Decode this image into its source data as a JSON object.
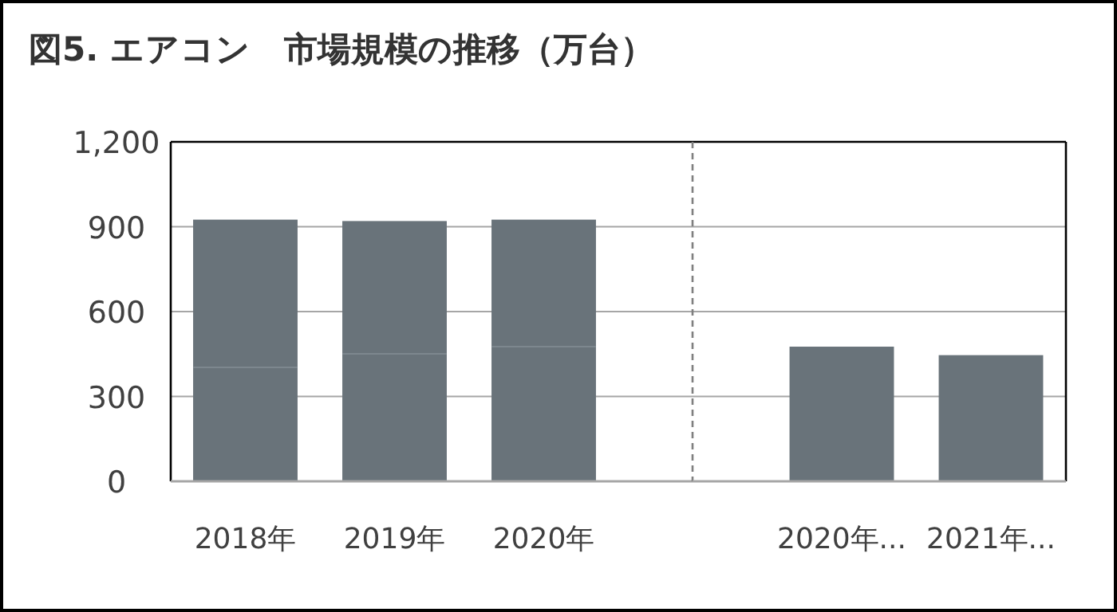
{
  "chart_data": [
    {
      "type": "bar",
      "title": "図5. エアコン　市場規模の推移（万台）",
      "categories": [
        "2018年",
        "2019年",
        "2020年"
      ],
      "stacked": true,
      "series": [
        {
          "color": "#69737a",
          "values": [
            403,
            451,
            476
          ]
        },
        {
          "color": "#69737a",
          "values": [
            522,
            469,
            449
          ]
        }
      ],
      "ylim": [
        0,
        1200
      ],
      "yticks": [
        0,
        300,
        600,
        900,
        {
          "value": 1200,
          "label": "1,200"
        }
      ],
      "grid": "y"
    },
    {
      "type": "bar",
      "categories": [
        "2020年...",
        "2021年..."
      ],
      "series": [
        {
          "color": "#69737a",
          "values": [
            476,
            446
          ]
        }
      ],
      "ylim": [
        0,
        1200
      ],
      "yticks": [
        0,
        300,
        600,
        900,
        1200
      ],
      "grid": "y",
      "tick_labels": "x"
    }
  ]
}
